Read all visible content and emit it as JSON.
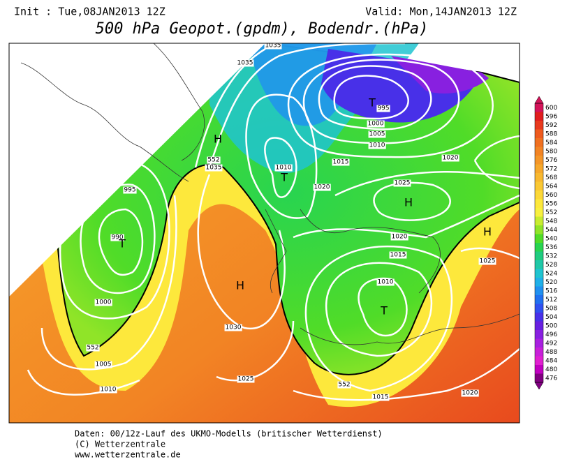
{
  "header": {
    "init": "Init : Tue,08JAN2013 12Z",
    "valid": "Valid: Mon,14JAN2013 12Z",
    "title": "500 hPa Geopot.(gpdm), Bodendr.(hPa)"
  },
  "footer": [
    "Daten: 00/12z-Lauf des UKMO-Modells (britischer Wetterdienst)",
    "(C) Wetterzentrale",
    "www.wetterzentrale.de"
  ],
  "colorbar": {
    "labels": [
      600,
      596,
      592,
      588,
      584,
      580,
      576,
      572,
      568,
      564,
      560,
      556,
      552,
      548,
      544,
      540,
      536,
      532,
      528,
      524,
      520,
      516,
      512,
      508,
      504,
      500,
      496,
      492,
      488,
      484,
      480,
      476
    ],
    "colors": [
      "#d4145a",
      "#e01e1e",
      "#e83a1e",
      "#ee5a1e",
      "#f07020",
      "#f28424",
      "#f49628",
      "#f6a82c",
      "#f8b830",
      "#fac834",
      "#fcd838",
      "#fde83c",
      "#f8f040",
      "#c8ec30",
      "#90e428",
      "#50dc28",
      "#28d450",
      "#20cc80",
      "#20c8a8",
      "#20c4d0",
      "#20b0e8",
      "#2090f0",
      "#2070f0",
      "#3050f0",
      "#4830e8",
      "#6820e0",
      "#8820e0",
      "#a820e0",
      "#c820d8",
      "#e020d0",
      "#c000c0",
      "#800080"
    ]
  },
  "map": {
    "isobar_labels": [
      "1035",
      "1035",
      "995",
      "1000",
      "1005",
      "1010",
      "1020",
      "1015",
      "1010",
      "1035",
      "1020",
      "1025",
      "995",
      "990",
      "1020",
      "1015",
      "1025",
      "1010",
      "1000",
      "1030",
      "552",
      "552",
      "1005",
      "1025",
      "552",
      "1015",
      "1020",
      "1010"
    ],
    "centers": [
      "T",
      "H",
      "T",
      "H",
      "T",
      "H",
      "H",
      "T"
    ]
  }
}
